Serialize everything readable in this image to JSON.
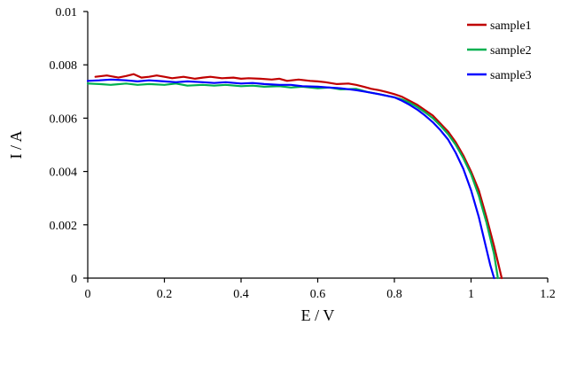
{
  "chart_data": {
    "type": "line",
    "title": "",
    "xlabel": "E / V",
    "ylabel": "I / A",
    "xlim": [
      0,
      1.2
    ],
    "ylim": [
      0,
      0.01
    ],
    "xticks": [
      "0",
      "0.2",
      "0.4",
      "0.6",
      "0.8",
      "1",
      "1.2"
    ],
    "yticks": [
      "0",
      "0.002",
      "0.004",
      "0.006",
      "0.008",
      "0.01"
    ],
    "grid": false,
    "legend_position": "top-right",
    "series": [
      {
        "name": "sample1",
        "color": "#c00000",
        "x": [
          0.02,
          0.05,
          0.08,
          0.1,
          0.12,
          0.14,
          0.16,
          0.18,
          0.2,
          0.22,
          0.25,
          0.28,
          0.3,
          0.32,
          0.35,
          0.38,
          0.4,
          0.42,
          0.45,
          0.48,
          0.5,
          0.52,
          0.55,
          0.58,
          0.6,
          0.62,
          0.65,
          0.68,
          0.7,
          0.72,
          0.74,
          0.76,
          0.78,
          0.8,
          0.82,
          0.84,
          0.86,
          0.88,
          0.9,
          0.92,
          0.94,
          0.96,
          0.98,
          1.0,
          1.02,
          1.04,
          1.06,
          1.07,
          1.08
        ],
        "y": [
          0.00755,
          0.0076,
          0.00752,
          0.00758,
          0.00765,
          0.00752,
          0.00755,
          0.0076,
          0.00755,
          0.0075,
          0.00755,
          0.00748,
          0.00752,
          0.00755,
          0.0075,
          0.00752,
          0.00748,
          0.0075,
          0.00748,
          0.00745,
          0.00748,
          0.0074,
          0.00745,
          0.0074,
          0.00738,
          0.00735,
          0.00728,
          0.0073,
          0.00725,
          0.00718,
          0.0071,
          0.00705,
          0.00698,
          0.0069,
          0.0068,
          0.00665,
          0.0065,
          0.0063,
          0.0061,
          0.0058,
          0.0055,
          0.0051,
          0.0046,
          0.004,
          0.0033,
          0.0023,
          0.0012,
          0.0006,
          0.0
        ]
      },
      {
        "name": "sample2",
        "color": "#00b050",
        "x": [
          0.0,
          0.03,
          0.06,
          0.1,
          0.13,
          0.16,
          0.2,
          0.23,
          0.26,
          0.3,
          0.33,
          0.36,
          0.4,
          0.43,
          0.46,
          0.5,
          0.53,
          0.56,
          0.6,
          0.63,
          0.66,
          0.7,
          0.73,
          0.76,
          0.8,
          0.82,
          0.84,
          0.86,
          0.88,
          0.9,
          0.92,
          0.94,
          0.96,
          0.98,
          1.0,
          1.02,
          1.04,
          1.06,
          1.07
        ],
        "y": [
          0.0073,
          0.00728,
          0.00725,
          0.0073,
          0.00725,
          0.00728,
          0.00725,
          0.0073,
          0.00722,
          0.00725,
          0.00722,
          0.00725,
          0.0072,
          0.00722,
          0.00718,
          0.0072,
          0.00715,
          0.00718,
          0.00712,
          0.00715,
          0.00708,
          0.0071,
          0.00698,
          0.0069,
          0.00678,
          0.0067,
          0.00658,
          0.00642,
          0.00622,
          0.006,
          0.00572,
          0.0054,
          0.005,
          0.0045,
          0.0039,
          0.0031,
          0.0021,
          0.0009,
          0.0
        ]
      },
      {
        "name": "sample3",
        "color": "#0000ff",
        "x": [
          0.0,
          0.03,
          0.06,
          0.1,
          0.13,
          0.16,
          0.2,
          0.23,
          0.26,
          0.3,
          0.33,
          0.36,
          0.4,
          0.43,
          0.46,
          0.5,
          0.53,
          0.56,
          0.6,
          0.63,
          0.66,
          0.7,
          0.73,
          0.76,
          0.8,
          0.82,
          0.84,
          0.86,
          0.88,
          0.9,
          0.92,
          0.94,
          0.96,
          0.98,
          1.0,
          1.02,
          1.04,
          1.05,
          1.06
        ],
        "y": [
          0.0074,
          0.00742,
          0.00745,
          0.00742,
          0.00738,
          0.00742,
          0.00738,
          0.00735,
          0.00738,
          0.00735,
          0.00732,
          0.00735,
          0.0073,
          0.00732,
          0.00728,
          0.00725,
          0.00725,
          0.0072,
          0.00718,
          0.00715,
          0.00712,
          0.00705,
          0.00698,
          0.0069,
          0.00678,
          0.00665,
          0.0065,
          0.00632,
          0.0061,
          0.00585,
          0.00555,
          0.0052,
          0.0047,
          0.0041,
          0.0033,
          0.0023,
          0.0011,
          0.0005,
          0.0
        ]
      }
    ]
  }
}
